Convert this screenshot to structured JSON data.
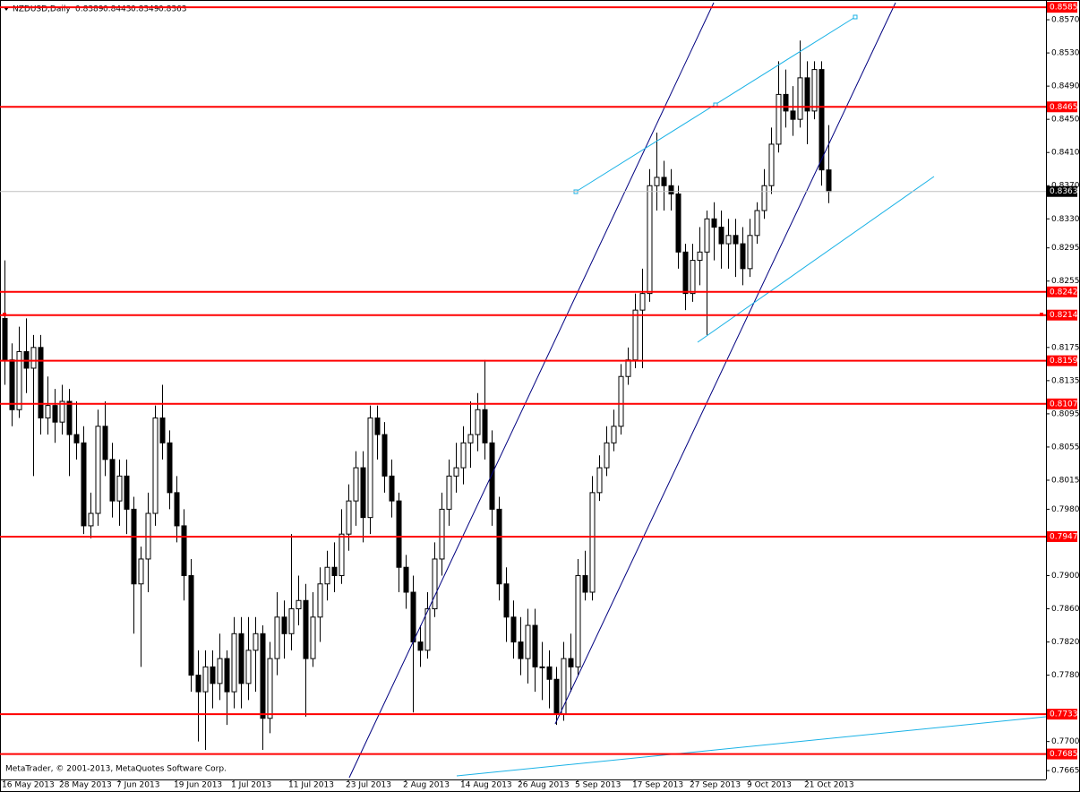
{
  "chart_data": {
    "type": "candlestick",
    "title": "NZDUSD,Daily",
    "footer": "MetaTrader, © 2001-2013, MetaQuotes Software Corp.",
    "categories": [
      "16 May 2013",
      null,
      null,
      null,
      null,
      null,
      null,
      null,
      "28 May 2013",
      null,
      null,
      null,
      null,
      null,
      null,
      null,
      "7 Jun 2013",
      null,
      null,
      null,
      null,
      null,
      null,
      null,
      "19 Jun 2013",
      null,
      null,
      null,
      null,
      null,
      null,
      null,
      "1 Jul 2013",
      null,
      null,
      null,
      null,
      null,
      null,
      null,
      "11 Jul 2013",
      null,
      null,
      null,
      null,
      null,
      null,
      null,
      "23 Jul 2013",
      null,
      null,
      null,
      null,
      null,
      null,
      null,
      "2 Aug 2013",
      null,
      null,
      null,
      null,
      null,
      null,
      null,
      "14 Aug 2013",
      null,
      null,
      null,
      null,
      null,
      null,
      null,
      "26 Aug 2013",
      null,
      null,
      null,
      null,
      null,
      null,
      null,
      "5 Sep 2013",
      null,
      null,
      null,
      null,
      null,
      null,
      null,
      "17 Sep 2013",
      null,
      null,
      null,
      null,
      null,
      null,
      null,
      "27 Sep 2013",
      null,
      null,
      null,
      null,
      null,
      null,
      null,
      "9 Oct 2013",
      null,
      null,
      null,
      null,
      null,
      null,
      null,
      "21 Oct 2013",
      null,
      null,
      null
    ],
    "open": [
      0.821,
      0.816,
      0.81,
      0.817,
      0.815,
      0.8175,
      0.809,
      0.8105,
      0.8085,
      0.811,
      0.807,
      0.806,
      0.796,
      0.7975,
      0.808,
      0.804,
      0.799,
      0.802,
      0.798,
      0.789,
      0.792,
      0.7975,
      0.809,
      0.806,
      0.8,
      0.796,
      0.79,
      0.778,
      0.776,
      0.779,
      0.777,
      0.78,
      0.776,
      0.783,
      0.777,
      0.781,
      0.783,
      0.7728,
      0.78,
      0.785,
      0.783,
      0.786,
      0.787,
      0.78,
      0.785,
      0.789,
      0.791,
      0.79,
      0.795,
      0.799,
      0.803,
      0.797,
      0.809,
      0.807,
      0.802,
      0.799,
      0.791,
      0.788,
      0.782,
      0.781,
      0.786,
      0.792,
      0.798,
      0.802,
      0.803,
      0.806,
      0.807,
      0.81,
      0.806,
      0.798,
      0.789,
      0.785,
      0.782,
      0.78,
      0.784,
      0.779,
      0.779,
      0.7775,
      0.7733,
      0.78,
      0.779,
      0.79,
      0.788,
      0.8,
      0.803,
      0.806,
      0.808,
      0.814,
      0.816,
      0.822,
      0.824,
      0.837,
      0.838,
      0.837,
      0.836,
      0.829,
      0.824,
      0.828,
      0.829,
      0.833,
      0.832,
      0.83,
      0.831,
      0.83,
      0.827,
      0.831,
      0.834,
      0.837,
      0.842,
      0.848,
      0.846,
      0.845,
      0.85,
      0.846,
      0.851,
      0.8389
    ],
    "high": [
      0.828,
      0.818,
      0.82,
      0.821,
      0.819,
      0.819,
      0.814,
      0.8125,
      0.813,
      0.8125,
      0.811,
      0.808,
      0.8,
      0.81,
      0.811,
      0.806,
      0.804,
      0.804,
      0.7995,
      0.7935,
      0.8,
      0.8105,
      0.813,
      0.8075,
      0.802,
      0.798,
      0.792,
      0.781,
      0.781,
      0.781,
      0.783,
      0.781,
      0.785,
      0.785,
      0.785,
      0.785,
      0.784,
      0.782,
      0.788,
      0.787,
      0.795,
      0.79,
      0.789,
      0.788,
      0.791,
      0.793,
      0.794,
      0.798,
      0.801,
      0.805,
      0.805,
      0.8105,
      0.8105,
      0.8085,
      0.804,
      0.8,
      0.7925,
      0.79,
      0.784,
      0.788,
      0.794,
      0.8,
      0.804,
      0.806,
      0.808,
      0.811,
      0.812,
      0.816,
      0.8075,
      0.7995,
      0.791,
      0.787,
      0.785,
      0.786,
      0.786,
      0.782,
      0.781,
      0.779,
      0.782,
      0.783,
      0.792,
      0.793,
      0.802,
      0.8045,
      0.808,
      0.81,
      0.8155,
      0.8175,
      0.824,
      0.827,
      0.839,
      0.8434,
      0.84,
      0.839,
      0.837,
      0.83,
      0.83,
      0.832,
      0.834,
      0.835,
      0.834,
      0.833,
      0.833,
      0.832,
      0.833,
      0.835,
      0.839,
      0.844,
      0.852,
      0.851,
      0.849,
      0.8545,
      0.852,
      0.852,
      0.852,
      0.8443
    ],
    "low": [
      0.813,
      0.808,
      0.809,
      0.812,
      0.802,
      0.807,
      0.807,
      0.806,
      0.807,
      0.802,
      0.804,
      0.795,
      0.7945,
      0.796,
      0.802,
      0.797,
      0.796,
      0.795,
      0.783,
      0.779,
      0.788,
      0.796,
      0.804,
      0.798,
      0.794,
      0.787,
      0.776,
      0.77,
      0.769,
      0.774,
      0.775,
      0.772,
      0.774,
      0.774,
      0.775,
      0.776,
      0.769,
      0.771,
      0.778,
      0.78,
      0.781,
      0.784,
      0.773,
      0.779,
      0.782,
      0.787,
      0.788,
      0.789,
      0.793,
      0.796,
      0.794,
      0.795,
      0.804,
      0.8,
      0.797,
      0.788,
      0.786,
      0.7735,
      0.779,
      0.78,
      0.785,
      0.79,
      0.796,
      0.8,
      0.801,
      0.803,
      0.805,
      0.804,
      0.796,
      0.787,
      0.782,
      0.78,
      0.778,
      0.777,
      0.776,
      0.775,
      0.774,
      0.772,
      0.7725,
      0.776,
      0.778,
      0.787,
      0.787,
      0.799,
      0.802,
      0.805,
      0.807,
      0.813,
      0.815,
      0.815,
      0.823,
      0.834,
      0.834,
      0.834,
      0.827,
      0.822,
      0.823,
      0.825,
      0.819,
      0.828,
      0.827,
      0.827,
      0.826,
      0.825,
      0.826,
      0.83,
      0.833,
      0.836,
      0.841,
      0.844,
      0.843,
      0.844,
      0.842,
      0.845,
      0.837,
      0.8349
    ],
    "close": [
      0.816,
      0.81,
      0.817,
      0.815,
      0.8175,
      0.809,
      0.8105,
      0.8085,
      0.811,
      0.807,
      0.806,
      0.796,
      0.7975,
      0.808,
      0.804,
      0.799,
      0.802,
      0.798,
      0.789,
      0.792,
      0.7975,
      0.809,
      0.806,
      0.8,
      0.796,
      0.79,
      0.778,
      0.776,
      0.779,
      0.777,
      0.78,
      0.776,
      0.783,
      0.777,
      0.781,
      0.783,
      0.7728,
      0.78,
      0.785,
      0.783,
      0.786,
      0.787,
      0.78,
      0.785,
      0.789,
      0.791,
      0.79,
      0.795,
      0.799,
      0.803,
      0.797,
      0.809,
      0.807,
      0.802,
      0.799,
      0.791,
      0.788,
      0.782,
      0.781,
      0.786,
      0.792,
      0.798,
      0.802,
      0.803,
      0.806,
      0.807,
      0.81,
      0.806,
      0.798,
      0.789,
      0.785,
      0.782,
      0.78,
      0.784,
      0.779,
      0.779,
      0.7775,
      0.7733,
      0.78,
      0.779,
      0.79,
      0.788,
      0.8,
      0.803,
      0.806,
      0.808,
      0.814,
      0.816,
      0.822,
      0.824,
      0.837,
      0.838,
      0.837,
      0.836,
      0.829,
      0.824,
      0.828,
      0.829,
      0.833,
      0.832,
      0.83,
      0.831,
      0.83,
      0.827,
      0.831,
      0.834,
      0.837,
      0.842,
      0.848,
      0.846,
      0.845,
      0.85,
      0.846,
      0.851,
      0.8389,
      0.8363
    ],
    "ylim": [
      0.76543,
      0.85938
    ],
    "yticks": [
      {
        "value": 0.857,
        "label": "0.8570"
      },
      {
        "value": 0.853,
        "label": "0.8530"
      },
      {
        "value": 0.849,
        "label": "0.8490"
      },
      {
        "value": 0.845,
        "label": "0.8450"
      },
      {
        "value": 0.841,
        "label": "0.8410"
      },
      {
        "value": 0.837,
        "label": "0.8370"
      },
      {
        "value": 0.833,
        "label": "0.8330"
      },
      0.8295,
      0.8255,
      0.8175,
      0.8135,
      0.8095,
      0.8055,
      0.8015,
      {
        "value": 0.798,
        "label": "0.7980"
      },
      {
        "value": 0.79,
        "label": "0.7900"
      },
      {
        "value": 0.786,
        "label": "0.7860"
      },
      {
        "value": 0.782,
        "label": "0.7820"
      },
      {
        "value": 0.778,
        "label": "0.7780"
      },
      {
        "value": 0.77,
        "label": "0.7700"
      },
      0.7665
    ],
    "levels": [
      0.8585,
      0.8465,
      0.8242,
      0.8214,
      0.8159,
      0.8107,
      0.7947,
      0.7733,
      0.7685
    ],
    "level_color": "#ff0000",
    "bull_color": "#ffffff",
    "bear_color": "#000000"
  }
}
